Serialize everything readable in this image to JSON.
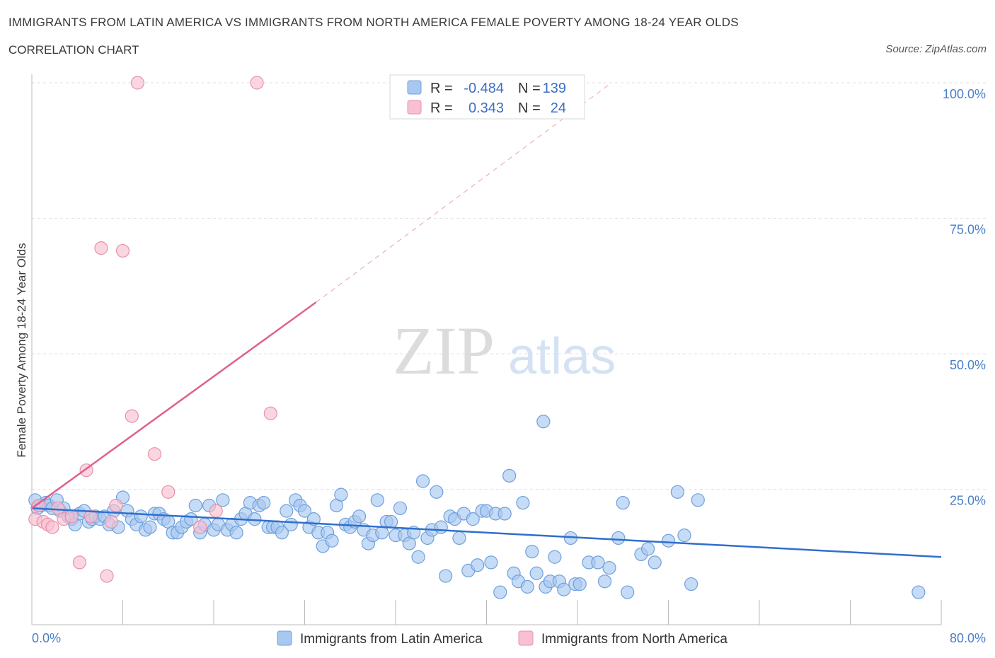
{
  "chart_data": {
    "type": "scatter",
    "title": "IMMIGRANTS FROM LATIN AMERICA VS IMMIGRANTS FROM NORTH AMERICA FEMALE POVERTY AMONG 18-24 YEAR OLDS",
    "subtitle": "CORRELATION CHART",
    "source": "Source: ZipAtlas.com",
    "ylabel": "Female Poverty Among 18-24 Year Olds",
    "xlabel": "",
    "xlim": [
      0,
      80
    ],
    "ylim": [
      0,
      100
    ],
    "x_tick_labels": [
      "0.0%",
      "80.0%"
    ],
    "y_tick_labels": [
      "100.0%",
      "75.0%",
      "50.0%",
      "25.0%"
    ],
    "y_tick_values": [
      100,
      75,
      50,
      25
    ],
    "watermark": "ZIPatlas",
    "legend": {
      "r_label": "R =",
      "n_label": "N =",
      "entries": [
        {
          "r": "-0.484",
          "n": "139",
          "color": "#a8c8f0",
          "stroke": "#6fa0dc"
        },
        {
          "r": "0.343",
          "n": "24",
          "color": "#f8c0d0",
          "stroke": "#e890aa"
        }
      ]
    },
    "series": [
      {
        "name": "Immigrants from Latin America",
        "color": "#a8c8f0",
        "stroke": "#6fa0dc",
        "line_color": "#2f6fce",
        "trend": {
          "x0": 0,
          "y0": 21.5,
          "x1": 80,
          "y1": 12.5
        },
        "points": [
          [
            0.3,
            23
          ],
          [
            0.5,
            21.5
          ],
          [
            0.8,
            22
          ],
          [
            1.2,
            22.5
          ],
          [
            1.5,
            22
          ],
          [
            1.8,
            21.5
          ],
          [
            2.2,
            23
          ],
          [
            2.5,
            21
          ],
          [
            2.8,
            21.5
          ],
          [
            3.2,
            20
          ],
          [
            3.5,
            19.5
          ],
          [
            3.8,
            18.5
          ],
          [
            4.2,
            20.5
          ],
          [
            4.6,
            21
          ],
          [
            5,
            19
          ],
          [
            5.3,
            19.5
          ],
          [
            5.6,
            20
          ],
          [
            6,
            19.5
          ],
          [
            6.4,
            20
          ],
          [
            6.8,
            18.5
          ],
          [
            7.2,
            21
          ],
          [
            7.6,
            18
          ],
          [
            8,
            23.5
          ],
          [
            8.4,
            21
          ],
          [
            8.8,
            19.5
          ],
          [
            9.2,
            18.5
          ],
          [
            9.6,
            20
          ],
          [
            10,
            17.5
          ],
          [
            10.4,
            18
          ],
          [
            10.8,
            20.5
          ],
          [
            11.2,
            20.5
          ],
          [
            11.6,
            19.5
          ],
          [
            12,
            19
          ],
          [
            12.4,
            17
          ],
          [
            12.8,
            17
          ],
          [
            13.2,
            18
          ],
          [
            13.6,
            19
          ],
          [
            14,
            19.5
          ],
          [
            14.4,
            22
          ],
          [
            14.8,
            17
          ],
          [
            15.2,
            18.5
          ],
          [
            15.6,
            22
          ],
          [
            16,
            17.5
          ],
          [
            16.4,
            18.5
          ],
          [
            16.8,
            23
          ],
          [
            17.2,
            17.5
          ],
          [
            17.6,
            18.5
          ],
          [
            18,
            17
          ],
          [
            18.4,
            19.5
          ],
          [
            18.8,
            20.5
          ],
          [
            19.2,
            22.5
          ],
          [
            19.6,
            19.5
          ],
          [
            20,
            22
          ],
          [
            20.4,
            22.5
          ],
          [
            20.8,
            18
          ],
          [
            21.2,
            18
          ],
          [
            21.6,
            18
          ],
          [
            22,
            17
          ],
          [
            22.4,
            21
          ],
          [
            22.8,
            18.5
          ],
          [
            23.2,
            23
          ],
          [
            23.6,
            22
          ],
          [
            24,
            21
          ],
          [
            24.4,
            18
          ],
          [
            24.8,
            19.5
          ],
          [
            25.2,
            17
          ],
          [
            25.6,
            14.5
          ],
          [
            26,
            17
          ],
          [
            26.4,
            15.5
          ],
          [
            26.8,
            22
          ],
          [
            27.2,
            24
          ],
          [
            27.6,
            18.5
          ],
          [
            28,
            18
          ],
          [
            28.4,
            19
          ],
          [
            28.8,
            20
          ],
          [
            29.2,
            17.5
          ],
          [
            29.6,
            15
          ],
          [
            30,
            16.5
          ],
          [
            30.4,
            23
          ],
          [
            30.8,
            17
          ],
          [
            31.2,
            19
          ],
          [
            31.6,
            19
          ],
          [
            32,
            16.5
          ],
          [
            32.4,
            21.5
          ],
          [
            32.8,
            16.5
          ],
          [
            33.2,
            15
          ],
          [
            33.6,
            17
          ],
          [
            34,
            12.5
          ],
          [
            34.4,
            26.5
          ],
          [
            34.8,
            16
          ],
          [
            35.2,
            17.5
          ],
          [
            35.6,
            24.5
          ],
          [
            36,
            18
          ],
          [
            36.4,
            9
          ],
          [
            36.8,
            20
          ],
          [
            37.2,
            19.5
          ],
          [
            37.6,
            16
          ],
          [
            38,
            20.5
          ],
          [
            38.4,
            10
          ],
          [
            38.8,
            19.5
          ],
          [
            39.2,
            11
          ],
          [
            39.6,
            21
          ],
          [
            40,
            21
          ],
          [
            40.4,
            11.5
          ],
          [
            40.8,
            20.5
          ],
          [
            41.2,
            6
          ],
          [
            41.6,
            20.5
          ],
          [
            42,
            27.5
          ],
          [
            42.4,
            9.5
          ],
          [
            42.8,
            8
          ],
          [
            43.2,
            22.5
          ],
          [
            43.6,
            7
          ],
          [
            44,
            13.5
          ],
          [
            44.4,
            9.5
          ],
          [
            45,
            37.5
          ],
          [
            45.2,
            7
          ],
          [
            45.6,
            8
          ],
          [
            46,
            12.5
          ],
          [
            46.4,
            8
          ],
          [
            46.8,
            6.5
          ],
          [
            47.4,
            16
          ],
          [
            47.8,
            7.5
          ],
          [
            48.2,
            7.5
          ],
          [
            49,
            11.5
          ],
          [
            49.8,
            11.5
          ],
          [
            50.4,
            8
          ],
          [
            50.8,
            10.5
          ],
          [
            51.6,
            16
          ],
          [
            52,
            22.5
          ],
          [
            52.4,
            6
          ],
          [
            53.6,
            13
          ],
          [
            54.2,
            14
          ],
          [
            54.8,
            11.5
          ],
          [
            56,
            15.5
          ],
          [
            56.8,
            24.5
          ],
          [
            57.4,
            16.5
          ],
          [
            58,
            7.5
          ],
          [
            58.6,
            23
          ],
          [
            78,
            6
          ]
        ]
      },
      {
        "name": "Immigrants from North America",
        "color": "#f8c0d0",
        "stroke": "#e890aa",
        "line_color": "#e06090",
        "trend": {
          "x0": 0,
          "y0": 21.5,
          "x1": 25,
          "y1": 59.5
        },
        "trend_dash": {
          "x0": 25,
          "y0": 59.5,
          "x1": 51,
          "y1": 100
        },
        "points": [
          [
            0.3,
            19.5
          ],
          [
            0.6,
            22
          ],
          [
            1,
            19
          ],
          [
            1.4,
            18.5
          ],
          [
            1.8,
            18
          ],
          [
            2.3,
            21.5
          ],
          [
            2.8,
            19.5
          ],
          [
            3.5,
            20
          ],
          [
            4.2,
            11.5
          ],
          [
            4.8,
            28.5
          ],
          [
            5.2,
            20
          ],
          [
            6.1,
            69.5
          ],
          [
            6.6,
            9
          ],
          [
            7,
            19
          ],
          [
            7.4,
            22
          ],
          [
            8,
            69
          ],
          [
            8.8,
            38.5
          ],
          [
            9.3,
            100
          ],
          [
            10.8,
            31.5
          ],
          [
            12,
            24.5
          ],
          [
            14.8,
            18
          ],
          [
            16.2,
            21
          ],
          [
            19.8,
            100
          ],
          [
            21,
            39
          ]
        ]
      }
    ]
  },
  "bottom_legend": {
    "latin": "Immigrants from Latin America",
    "north": "Immigrants from North America"
  }
}
